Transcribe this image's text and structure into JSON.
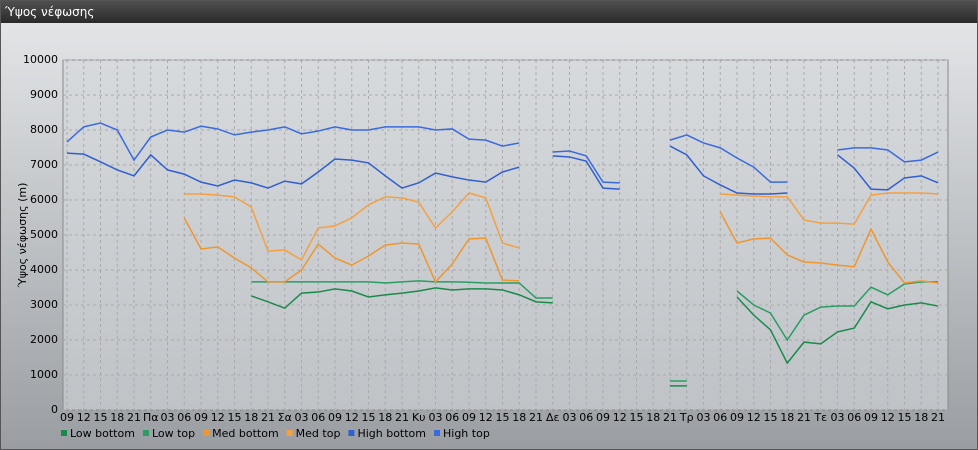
{
  "chart_data": {
    "type": "line",
    "title": "Ύψος νέφωσης",
    "ylabel": "Ύψος νέφωσης (m)",
    "categories": [
      "09",
      "12",
      "15",
      "18",
      "21",
      "Πα",
      "03",
      "06",
      "09",
      "12",
      "15",
      "18",
      "21",
      "Σα",
      "03",
      "06",
      "09",
      "12",
      "15",
      "18",
      "21",
      "Κυ",
      "03",
      "06",
      "09",
      "12",
      "15",
      "18",
      "21",
      "Δε",
      "03",
      "06",
      "09",
      "12",
      "15",
      "18",
      "21",
      "Τρ",
      "03",
      "06",
      "09",
      "12",
      "15",
      "18",
      "21",
      "Τε",
      "03",
      "06",
      "09",
      "12",
      "15",
      "18",
      "21"
    ],
    "ylim": [
      0,
      10000
    ],
    "yticks": [
      0,
      1000,
      2000,
      3000,
      4000,
      5000,
      6000,
      7000,
      8000,
      9000,
      10000
    ],
    "grid": true,
    "series": [
      {
        "name": "Low bottom",
        "color": "#1a8a4a",
        "values": [
          null,
          null,
          null,
          null,
          null,
          null,
          null,
          null,
          null,
          null,
          null,
          3260,
          3090,
          2910,
          3340,
          3370,
          3460,
          3400,
          3230,
          3290,
          3340,
          3400,
          3490,
          3430,
          3460,
          3460,
          3430,
          3290,
          3090,
          3060,
          null,
          null,
          null,
          null,
          null,
          null,
          690,
          690,
          null,
          null,
          3230,
          2710,
          2290,
          1340,
          1940,
          1890,
          2230,
          2340,
          3090,
          2890,
          3000,
          3060,
          2970
        ]
      },
      {
        "name": "Low top",
        "color": "#2a9d62",
        "values": [
          null,
          null,
          null,
          null,
          null,
          null,
          null,
          null,
          null,
          null,
          null,
          3660,
          3660,
          3660,
          3660,
          3660,
          3660,
          3660,
          3660,
          3630,
          3660,
          3690,
          3660,
          3660,
          3650,
          3630,
          3630,
          3630,
          3200,
          3200,
          null,
          null,
          null,
          null,
          null,
          null,
          830,
          830,
          null,
          null,
          3400,
          3000,
          2770,
          2000,
          2710,
          2940,
          2970,
          2970,
          3510,
          3290,
          3600,
          3660,
          3660
        ]
      },
      {
        "name": "Med bottom",
        "color": "#f0962e",
        "values": [
          null,
          null,
          null,
          null,
          null,
          null,
          null,
          5490,
          4600,
          4660,
          4340,
          4060,
          3660,
          3660,
          4000,
          4740,
          4340,
          4140,
          4400,
          4710,
          4770,
          4740,
          3660,
          4170,
          4890,
          4910,
          3710,
          3690,
          null,
          null,
          null,
          null,
          null,
          null,
          null,
          null,
          null,
          null,
          null,
          5660,
          4770,
          4890,
          4910,
          4430,
          4230,
          4200,
          4140,
          4090,
          5170,
          4230,
          3630,
          3690,
          3630
        ]
      },
      {
        "name": "Med top",
        "color": "#f5a040",
        "values": [
          null,
          null,
          null,
          null,
          null,
          null,
          null,
          6170,
          6170,
          6140,
          6090,
          5800,
          4540,
          4570,
          4290,
          5200,
          5260,
          5490,
          5860,
          6090,
          6060,
          5940,
          5200,
          5660,
          6200,
          6060,
          4770,
          4630,
          null,
          null,
          null,
          null,
          null,
          null,
          null,
          null,
          null,
          null,
          null,
          6170,
          6140,
          6110,
          6090,
          6090,
          5430,
          5340,
          5340,
          5310,
          6140,
          6200,
          6200,
          6200,
          6170
        ]
      },
      {
        "name": "High bottom",
        "color": "#2f5fd0",
        "values": [
          7340,
          7310,
          7090,
          6860,
          6690,
          7290,
          6860,
          6740,
          6510,
          6400,
          6570,
          6490,
          6340,
          6540,
          6460,
          6800,
          7170,
          7140,
          7060,
          6690,
          6340,
          6490,
          6770,
          6660,
          6570,
          6510,
          6800,
          6940,
          null,
          7260,
          7230,
          7110,
          6340,
          6310,
          null,
          null,
          7540,
          7290,
          6690,
          6430,
          6200,
          6170,
          6170,
          6200,
          null,
          null,
          7290,
          6910,
          6310,
          6290,
          6630,
          6690,
          6490
        ]
      },
      {
        "name": "High top",
        "color": "#3a6ae0",
        "values": [
          7660,
          8090,
          8200,
          8000,
          7140,
          7800,
          8000,
          7940,
          8110,
          8030,
          7860,
          7940,
          8000,
          8090,
          7890,
          7970,
          8090,
          8000,
          8000,
          8090,
          8090,
          8090,
          8000,
          8030,
          7740,
          7710,
          7540,
          7630,
          null,
          7370,
          7400,
          7260,
          6510,
          6490,
          null,
          null,
          7710,
          7860,
          7630,
          7490,
          7200,
          6940,
          6510,
          6510,
          null,
          null,
          7430,
          7490,
          7490,
          7430,
          7090,
          7140,
          7370
        ]
      }
    ]
  }
}
